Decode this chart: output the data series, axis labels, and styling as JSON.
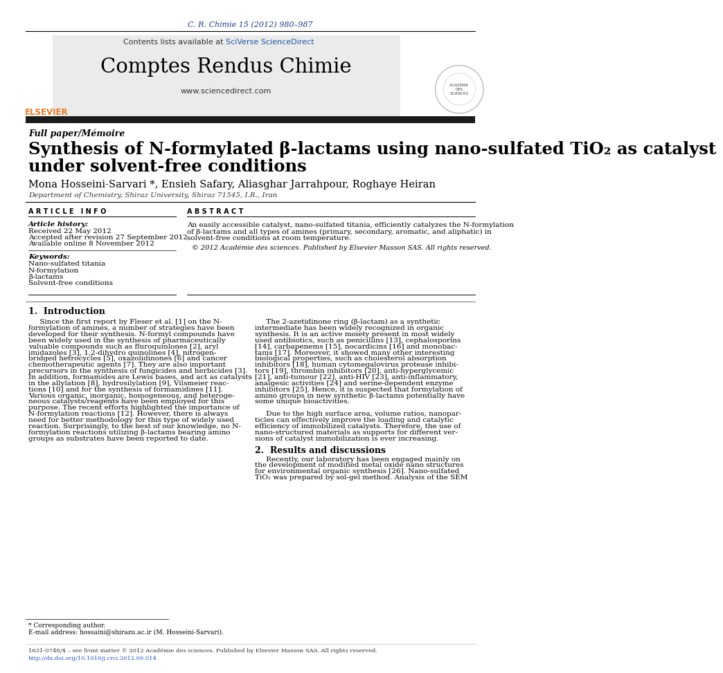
{
  "journal_header": "C. R. Chimie 15 (2012) 980–987",
  "contents_line": "Contents lists available at SciVerse ScienceDirect",
  "journal_name": "Comptes Rendus Chimie",
  "journal_url": "www.sciencedirect.com",
  "paper_type": "Full paper/Mémoire",
  "title_line1": "Synthesis of N-formylated β-lactams using nano-sulfated TiO₂ as catalyst",
  "title_line2": "under solvent-free conditions",
  "authors": "Mona Hosseini-Sarvari *, Ensieh Safary, Aliasghar Jarrahpour, Roghaye Heiran",
  "affiliation": "Department of Chemistry, Shiraz University, Shiraz 71545, I.R., Iran",
  "article_info_label": "ARTICLE INFO",
  "abstract_label": "ABSTRACT",
  "article_history_label": "Article history:",
  "received": "Received 22 May 2012",
  "accepted": "Accepted after revision 27 September 2012",
  "available": "Available online 8 November 2012",
  "keywords_label": "Keywords:",
  "keywords": [
    "Nano-sulfated titania",
    "N-formylation",
    "β-lactams",
    "Solvent-free conditions"
  ],
  "abstract_text": "An easily accessible catalyst, nano-sulfated titania, efficiently catalyzes the N-formylation\nof β-lactams and all types of amines (primary, secondary, aromatic, and aliphatic) in\nsolvent-free conditions at room temperature.",
  "copyright": "© 2012 Académie des sciences. Published by Elsevier Masson SAS. All rights reserved.",
  "intro_heading": "1.  Introduction",
  "intro_col1_lines": [
    "     Since the first report by Fleser et al. [1] on the N-",
    "formylation of amines, a number of strategies have been",
    "developed for their synthesis. N-formyl compounds have",
    "been widely used in the synthesis of pharmaceutically",
    "valuable compounds such as fluroquinlones [2], aryl",
    "imidazoles [3], 1,2-dihydro quinolines [4], nitrogen-",
    "bridged hetrocycles [5], oxazolidinones [6] and cancer",
    "chemotherapeutic agents [7]. They are also important",
    "precursors in the synthesis of fungicides and herbicides [3].",
    "In addition, formamides are Lewis bases, and act as catalysts",
    "in the allylation [8], hydrosilylation [9], Vilsmeier reac-",
    "tions [10] and for the synthesis of formamidines [11].",
    "Various organic, inorganic, homogeneous, and heteroge-",
    "neous catalysts/reagents have been employed for this",
    "purpose. The recent efforts highlighted the importance of",
    "N-formylation reactions [12]. However, there is always",
    "need for better methodology for this type of widely used",
    "reaction. Surprisingly, to the best of our knowledge, no N-",
    "formylation reactions utilizing β-lactams bearing amino",
    "groups as substrates have been reported to date."
  ],
  "intro_col2_lines": [
    "     The 2-azetidinone ring (β-lactam) as a synthetic",
    "intermediate has been widely recognized in organic",
    "synthesis. It is an active moiety present in most widely",
    "used antibiotics, such as penicillins [13], cephalosporins",
    "[14], carbapenems [15], nocardicins [16] and monobac-",
    "tams [17]. Moreover, it showed many other interesting",
    "biological properties, such as cholesterol absorption",
    "inhibitors [18], human cytomegalovirus protease inhibi-",
    "tors [19], thrombin inhibitors [20], anti-hyperglycemic",
    "[21], anti-tumour [22], anti-HIV [23], anti-inflammatory,",
    "analgesic activities [24] and serine-dependent enzyme",
    "inhibitors [25]. Hence, it is suspected that formylation of",
    "amino groups in new synthetic β-lactams potentially have",
    "some unique bioactivities.",
    "",
    "     Due to the high surface area, volume ratios, nanopar-",
    "ticles can effectively improve the loading and catalytic",
    "efficiency of immobilized catalysts. Therefore, the use of",
    "nano-structured materials as supports for different ver-",
    "sions of catalyst immobilization is ever increasing."
  ],
  "results_heading": "2.  Results and discussions",
  "results_col2_lines": [
    "     Recently, our laboratory has been engaged mainly on",
    "the development of modified metal oxide nano structures",
    "for environmental organic synthesis [26]. Nano-sulfated",
    "TiO₂ was prepared by sol-gel method. Analysis of the SEM"
  ],
  "footer_line1": "1631-0748/$ – see front matter © 2012 Académie des sciences. Published by Elsevier Masson SAS. All rights reserved.",
  "footer_line2": "http://dx.doi.org/10.1016/j.crci.2012.09.014",
  "corresponding_note": "* Corresponding author.",
  "email_note": "E-mail address: hossaini@shirazu.ac.ir (M. Hosseini-Sarvari).",
  "bg_color": "#ffffff",
  "dark_bar_color": "#1a1a1a",
  "blue_color": "#1a3a8a",
  "sciverse_color": "#2255aa",
  "elsevier_orange": "#e87722",
  "link_blue": "#2255cc"
}
